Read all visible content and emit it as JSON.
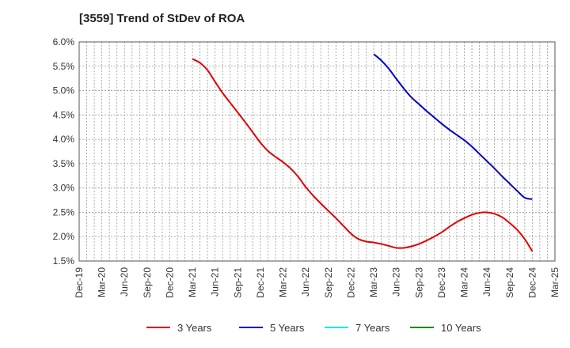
{
  "chart_data": {
    "type": "line",
    "title": "[3559]  Trend of StDev of ROA",
    "xlabel": "",
    "ylabel": "",
    "x_ticks": [
      "Dec-19",
      "Mar-20",
      "Jun-20",
      "Sep-20",
      "Dec-20",
      "Mar-21",
      "Jun-21",
      "Sep-21",
      "Dec-21",
      "Mar-22",
      "Jun-22",
      "Sep-22",
      "Dec-22",
      "Mar-23",
      "Jun-23",
      "Sep-23",
      "Dec-23",
      "Mar-24",
      "Jun-24",
      "Sep-24",
      "Dec-24",
      "Mar-25"
    ],
    "ylim": [
      1.5,
      6.0
    ],
    "y_ticks": [
      "1.5%",
      "2.0%",
      "2.5%",
      "3.0%",
      "3.5%",
      "4.0%",
      "4.5%",
      "5.0%",
      "5.5%",
      "6.0%"
    ],
    "grid": true,
    "legend_position": "bottom",
    "series": [
      {
        "name": "3 Years",
        "color": "#e00000",
        "points": [
          [
            "Mar-21",
            5.65
          ],
          [
            "Apr-21",
            5.57
          ],
          [
            "May-21",
            5.42
          ],
          [
            "Jun-21",
            5.18
          ],
          [
            "Jul-21",
            4.95
          ],
          [
            "Aug-21",
            4.75
          ],
          [
            "Sep-21",
            4.55
          ],
          [
            "Oct-21",
            4.35
          ],
          [
            "Nov-21",
            4.14
          ],
          [
            "Dec-21",
            3.93
          ],
          [
            "Jan-22",
            3.76
          ],
          [
            "Feb-22",
            3.64
          ],
          [
            "Mar-22",
            3.53
          ],
          [
            "Apr-22",
            3.4
          ],
          [
            "May-22",
            3.23
          ],
          [
            "Jun-22",
            3.02
          ],
          [
            "Jul-22",
            2.84
          ],
          [
            "Aug-22",
            2.68
          ],
          [
            "Sep-22",
            2.53
          ],
          [
            "Oct-22",
            2.38
          ],
          [
            "Nov-22",
            2.22
          ],
          [
            "Dec-22",
            2.06
          ],
          [
            "Jan-23",
            1.95
          ],
          [
            "Feb-23",
            1.9
          ],
          [
            "Mar-23",
            1.88
          ],
          [
            "Apr-23",
            1.85
          ],
          [
            "May-23",
            1.81
          ],
          [
            "Jun-23",
            1.77
          ],
          [
            "Jul-23",
            1.77
          ],
          [
            "Aug-23",
            1.8
          ],
          [
            "Sep-23",
            1.85
          ],
          [
            "Oct-23",
            1.92
          ],
          [
            "Nov-23",
            2.0
          ],
          [
            "Dec-23",
            2.09
          ],
          [
            "Jan-24",
            2.2
          ],
          [
            "Feb-24",
            2.3
          ],
          [
            "Mar-24",
            2.38
          ],
          [
            "Apr-24",
            2.45
          ],
          [
            "May-24",
            2.49
          ],
          [
            "Jun-24",
            2.5
          ],
          [
            "Jul-24",
            2.47
          ],
          [
            "Aug-24",
            2.4
          ],
          [
            "Sep-24",
            2.28
          ],
          [
            "Oct-24",
            2.14
          ],
          [
            "Nov-24",
            1.95
          ],
          [
            "Dec-24",
            1.7
          ]
        ]
      },
      {
        "name": "5 Years",
        "color": "#0000cc",
        "points": [
          [
            "Mar-23",
            5.75
          ],
          [
            "Apr-23",
            5.62
          ],
          [
            "May-23",
            5.45
          ],
          [
            "Jun-23",
            5.24
          ],
          [
            "Jul-23",
            5.04
          ],
          [
            "Aug-23",
            4.86
          ],
          [
            "Sep-23",
            4.72
          ],
          [
            "Oct-23",
            4.58
          ],
          [
            "Nov-23",
            4.45
          ],
          [
            "Dec-23",
            4.32
          ],
          [
            "Jan-24",
            4.2
          ],
          [
            "Feb-24",
            4.09
          ],
          [
            "Mar-24",
            3.98
          ],
          [
            "Apr-24",
            3.85
          ],
          [
            "May-24",
            3.7
          ],
          [
            "Jun-24",
            3.55
          ],
          [
            "Jul-24",
            3.4
          ],
          [
            "Aug-24",
            3.24
          ],
          [
            "Sep-24",
            3.09
          ],
          [
            "Oct-24",
            2.94
          ],
          [
            "Nov-24",
            2.8
          ],
          [
            "Dec-24",
            2.77
          ]
        ]
      },
      {
        "name": "7 Years",
        "color": "#00e5ee",
        "points": []
      },
      {
        "name": "10 Years",
        "color": "#1a8a1a",
        "points": []
      }
    ]
  }
}
